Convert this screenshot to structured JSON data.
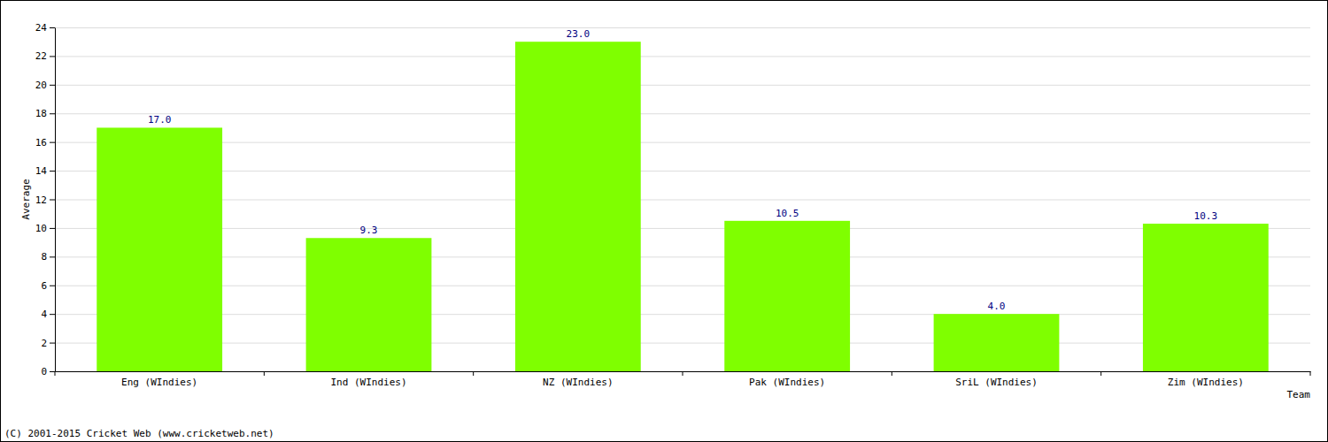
{
  "chart_data": {
    "type": "bar",
    "x_label": "Team",
    "y_label": "Average",
    "annotations": [
      "(C) 2001-2015 Cricket Web (www.cricketweb.net)"
    ],
    "categories": [
      "Eng (WIndies)",
      "Ind (WIndies)",
      "NZ (WIndies)",
      "Pak (WIndies)",
      "SriL (WIndies)",
      "Zim (WIndies)"
    ],
    "values": [
      17,
      9.3,
      23,
      10.5,
      4,
      10.3
    ],
    "value_labels": [
      "17.0",
      "9.3",
      "23.0",
      "10.5",
      "4.0",
      "10.3"
    ],
    "color": "#7fff00",
    "ylim": [
      0,
      24
    ],
    "yticks": [
      0,
      2,
      4,
      6,
      8,
      10,
      12,
      14,
      16,
      18,
      20,
      22,
      24
    ],
    "grid": true,
    "data_labels": true
  }
}
